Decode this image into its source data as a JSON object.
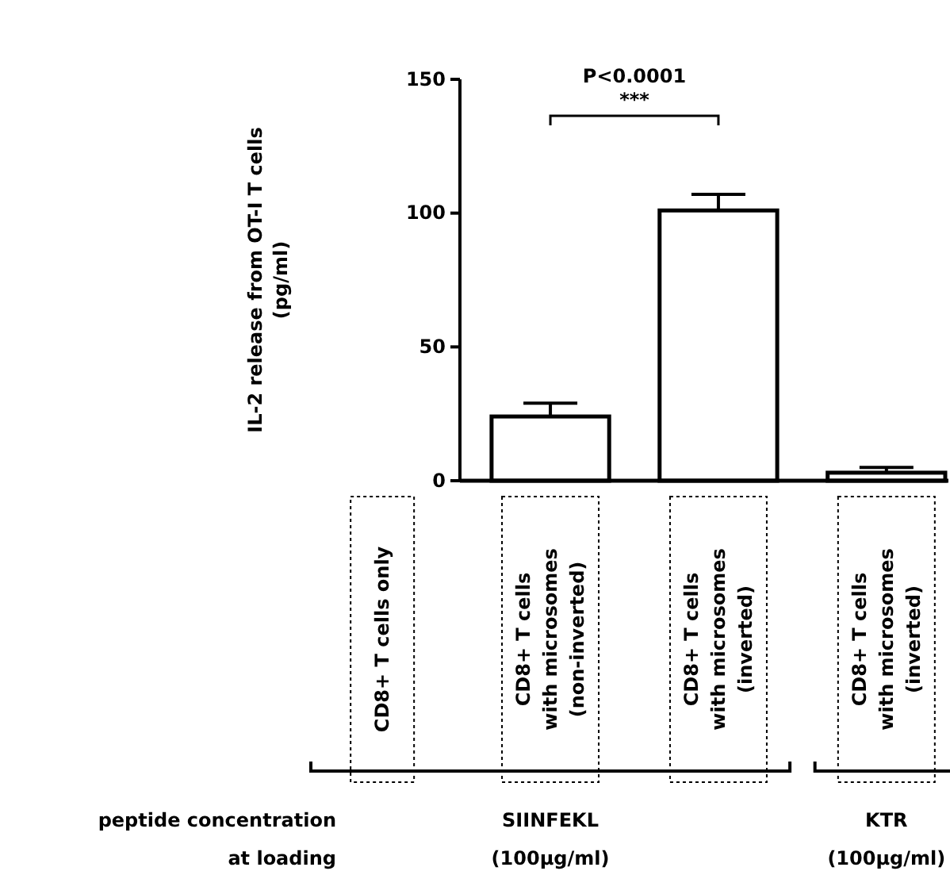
{
  "chart_data": {
    "type": "bar",
    "ylabel": "IL-2 release from OT-I T cells\n(pg/ml)",
    "categories": [
      "CD8+ T cells only",
      "CD8+ T cells\nwith microsomes\n(non-inverted)",
      "CD8+ T cells\nwith microsomes\n(inverted)",
      "CD8+ T cells\nwith microsomes\n(inverted)"
    ],
    "values": [
      0,
      24,
      101,
      3
    ],
    "errors": [
      null,
      5,
      6,
      2
    ],
    "color": "#ffffff",
    "ylim": [
      0,
      150
    ],
    "yticks": [
      0,
      50,
      100,
      150
    ],
    "grid": false,
    "annotations": [
      "P<0.0001",
      "***",
      "peptide concentration\nat loading",
      "SIINFEKL\n(100µg/ml)",
      "KTR\n(100µg/ml)"
    ]
  }
}
